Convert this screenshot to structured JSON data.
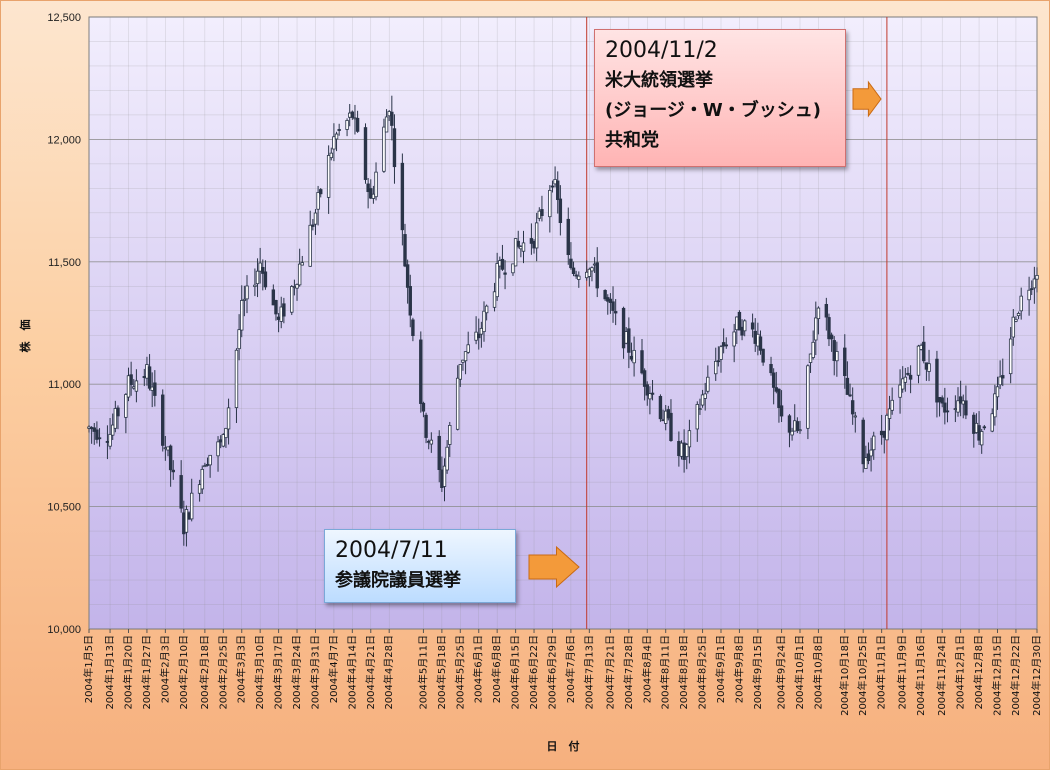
{
  "chart_data": {
    "type": "candlestick",
    "title": "",
    "xlabel": "日　付",
    "ylabel": "株　価",
    "ylim": [
      10000,
      12500
    ],
    "yticks": [
      "10,000",
      "10,500",
      "11,000",
      "11,500",
      "12,000",
      "12,500"
    ],
    "ytick_values": [
      10000,
      10500,
      11000,
      11500,
      12000,
      12500
    ],
    "grid": true,
    "x_start": "2004-01-05",
    "x_end": "2004-12-30",
    "xticks": [
      "2004年1月5日",
      "2004年1月13日",
      "2004年1月20日",
      "2004年1月27日",
      "2004年2月3日",
      "2004年2月10日",
      "2004年2月18日",
      "2004年2月25日",
      "2004年3月3日",
      "2004年3月10日",
      "2004年3月17日",
      "2004年3月24日",
      "2004年3月31日",
      "2004年4月7日",
      "2004年4月14日",
      "2004年4月21日",
      "2004年4月28日",
      "2004年5月11日",
      "2004年5月18日",
      "2004年5月25日",
      "2004年6月1日",
      "2004年6月8日",
      "2004年6月15日",
      "2004年6月22日",
      "2004年6月29日",
      "2004年7月6日",
      "2004年7月13日",
      "2004年7月21日",
      "2004年7月28日",
      "2004年8月4日",
      "2004年8月11日",
      "2004年8月18日",
      "2004年8月25日",
      "2004年9月1日",
      "2004年9月8日",
      "2004年9月15日",
      "2004年9月24日",
      "2004年10月1日",
      "2004年10月8日",
      "2004年10月18日",
      "2004年10月25日",
      "2004年11月1日",
      "2004年11月9日",
      "2004年11月16日",
      "2004年11月24日",
      "2004年12月1日",
      "2004年12月8日",
      "2004年12月15日",
      "2004年12月22日",
      "2004年12月30日"
    ],
    "xtick_dates": [
      "2004-01-05",
      "2004-01-13",
      "2004-01-20",
      "2004-01-27",
      "2004-02-03",
      "2004-02-10",
      "2004-02-18",
      "2004-02-25",
      "2004-03-03",
      "2004-03-10",
      "2004-03-17",
      "2004-03-24",
      "2004-03-31",
      "2004-04-07",
      "2004-04-14",
      "2004-04-21",
      "2004-04-28",
      "2004-05-11",
      "2004-05-18",
      "2004-05-25",
      "2004-06-01",
      "2004-06-08",
      "2004-06-15",
      "2004-06-22",
      "2004-06-29",
      "2004-07-06",
      "2004-07-13",
      "2004-07-21",
      "2004-07-28",
      "2004-08-04",
      "2004-08-11",
      "2004-08-18",
      "2004-08-25",
      "2004-09-01",
      "2004-09-08",
      "2004-09-15",
      "2004-09-24",
      "2004-10-01",
      "2004-10-08",
      "2004-10-18",
      "2004-10-25",
      "2004-11-01",
      "2004-11-09",
      "2004-11-16",
      "2004-11-24",
      "2004-12-01",
      "2004-12-08",
      "2004-12-15",
      "2004-12-22",
      "2004-12-30"
    ],
    "close_trend": [
      [
        "2004-01-05",
        10820
      ],
      [
        "2004-01-13",
        10800
      ],
      [
        "2004-01-20",
        11000
      ],
      [
        "2004-01-27",
        11050
      ],
      [
        "2004-02-03",
        10750
      ],
      [
        "2004-02-10",
        10420
      ],
      [
        "2004-02-18",
        10700
      ],
      [
        "2004-02-25",
        10760
      ],
      [
        "2004-03-03",
        11300
      ],
      [
        "2004-03-10",
        11500
      ],
      [
        "2004-03-17",
        11250
      ],
      [
        "2004-03-24",
        11450
      ],
      [
        "2004-03-31",
        11700
      ],
      [
        "2004-04-07",
        12000
      ],
      [
        "2004-04-14",
        12100
      ],
      [
        "2004-04-21",
        11750
      ],
      [
        "2004-04-28",
        12150
      ],
      [
        "2004-05-04",
        11500
      ],
      [
        "2004-05-11",
        10850
      ],
      [
        "2004-05-18",
        10600
      ],
      [
        "2004-05-25",
        11100
      ],
      [
        "2004-06-01",
        11200
      ],
      [
        "2004-06-08",
        11450
      ],
      [
        "2004-06-15",
        11550
      ],
      [
        "2004-06-22",
        11600
      ],
      [
        "2004-06-29",
        11850
      ],
      [
        "2004-07-06",
        11450
      ],
      [
        "2004-07-13",
        11500
      ],
      [
        "2004-07-21",
        11300
      ],
      [
        "2004-07-28",
        11150
      ],
      [
        "2004-08-04",
        11000
      ],
      [
        "2004-08-11",
        10850
      ],
      [
        "2004-08-18",
        10700
      ],
      [
        "2004-08-25",
        10950
      ],
      [
        "2004-09-01",
        11150
      ],
      [
        "2004-09-08",
        11250
      ],
      [
        "2004-09-15",
        11200
      ],
      [
        "2004-09-24",
        10850
      ],
      [
        "2004-10-01",
        10800
      ],
      [
        "2004-10-08",
        11350
      ],
      [
        "2004-10-18",
        11000
      ],
      [
        "2004-10-25",
        10700
      ],
      [
        "2004-11-01",
        10800
      ],
      [
        "2004-11-09",
        11000
      ],
      [
        "2004-11-16",
        11150
      ],
      [
        "2004-11-24",
        10900
      ],
      [
        "2004-12-01",
        10950
      ],
      [
        "2004-12-08",
        10800
      ],
      [
        "2004-12-15",
        10950
      ],
      [
        "2004-12-22",
        11300
      ],
      [
        "2004-12-30",
        11480
      ]
    ],
    "event_lines": [
      {
        "date": "2004-07-12",
        "color": "#c0392b"
      },
      {
        "date": "2004-11-03",
        "color": "#c0392b"
      }
    ],
    "annotations": [
      {
        "id": "us",
        "date_label": "2004/11/2",
        "lines": [
          "米大統領選挙",
          "(ジョージ・W・ブッシュ)",
          "共和党"
        ]
      },
      {
        "id": "jp",
        "date_label": "2004/7/11",
        "lines": [
          "参議院議員選挙"
        ]
      }
    ],
    "colors": {
      "candle": "#2a3448",
      "plot_top": "#f2eefd",
      "plot_bottom": "#c3b4ea",
      "grid": "#8c8c8c",
      "arrow": "#f39a3a",
      "arrow_stroke": "#c96a14"
    }
  }
}
